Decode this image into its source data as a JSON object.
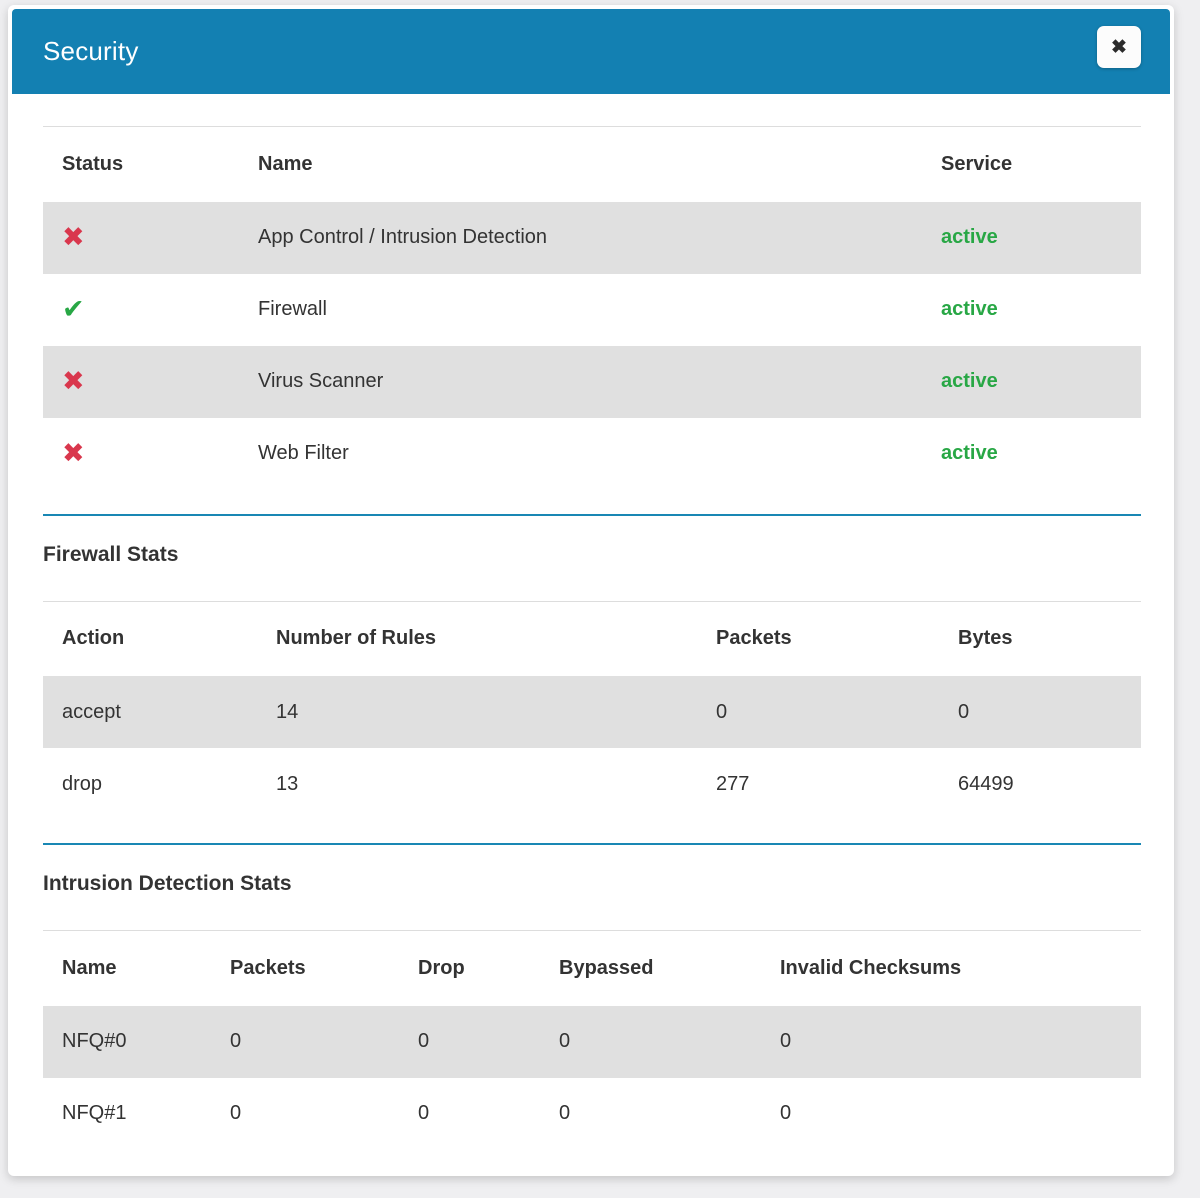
{
  "modal": {
    "title": "Security",
    "close_icon": "✖"
  },
  "icons": {
    "cross": "✖",
    "check": "✔"
  },
  "colors": {
    "header_blue": "#1380b2",
    "divider_blue": "#1987b4",
    "row_stripe_gray": "#e0e0e0",
    "active_green": "#28a745",
    "status_cross_red": "#d9374d",
    "status_check_green": "#28a745",
    "page_background": "#efeff1"
  },
  "services_table": {
    "columns": [
      "Status",
      "Name",
      "Service"
    ],
    "rows": [
      [
        {
          "icon": "cross"
        },
        {
          "text": "App Control / Intrusion Detection"
        },
        {
          "text": "active",
          "style": "state-active"
        }
      ],
      [
        {
          "icon": "check"
        },
        {
          "text": "Firewall"
        },
        {
          "text": "active",
          "style": "state-active"
        }
      ],
      [
        {
          "icon": "cross"
        },
        {
          "text": "Virus Scanner"
        },
        {
          "text": "active",
          "style": "state-active"
        }
      ],
      [
        {
          "icon": "cross"
        },
        {
          "text": "Web Filter"
        },
        {
          "text": "active",
          "style": "state-active"
        }
      ]
    ]
  },
  "firewall_stats": {
    "heading": "Firewall Stats",
    "columns": [
      "Action",
      "Number of Rules",
      "Packets",
      "Bytes"
    ],
    "rows": [
      [
        "accept",
        "14",
        "0",
        "0"
      ],
      [
        "drop",
        "13",
        "277",
        "64499"
      ]
    ]
  },
  "intrusion_stats": {
    "heading": "Intrusion Detection Stats",
    "columns": [
      "Name",
      "Packets",
      "Drop",
      "Bypassed",
      "Invalid Checksums"
    ],
    "rows": [
      [
        "NFQ#0",
        "0",
        "0",
        "0",
        "0"
      ],
      [
        "NFQ#1",
        "0",
        "0",
        "0",
        "0"
      ]
    ]
  }
}
